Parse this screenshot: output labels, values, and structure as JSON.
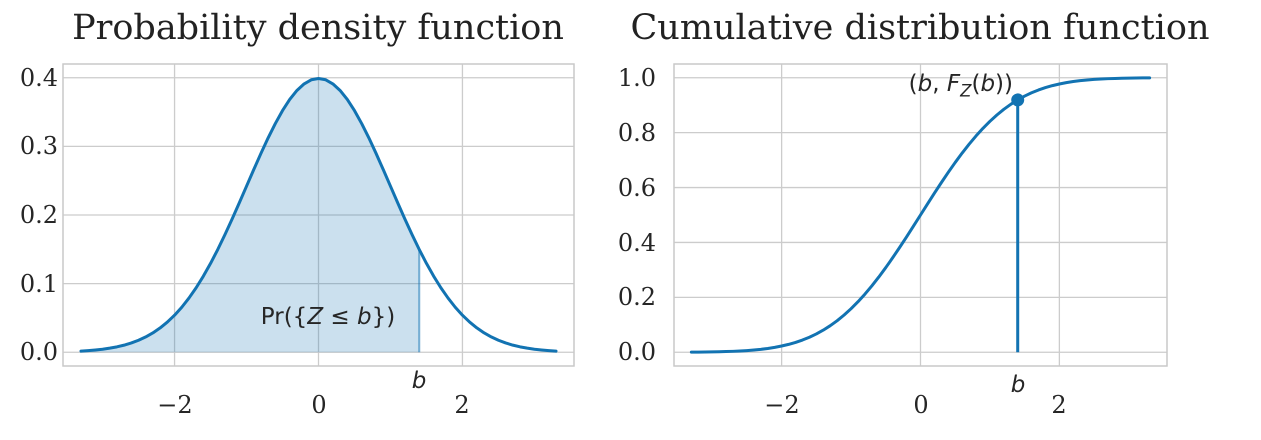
{
  "figure": {
    "background": "#ffffff",
    "accent_blue": "#1273b2",
    "fill_blue": "rgba(18,114,178,0.22)",
    "fill_edge_blue": "rgba(18,114,178,0.55)",
    "grid_color": "#cccccc",
    "frame_color": "#c9c9c9",
    "text_color": "#262626"
  },
  "chart_data": [
    {
      "id": "pdf",
      "type": "line",
      "title": "Probability density function",
      "xlim": [
        -3.55,
        3.55
      ],
      "ylim": [
        -0.02,
        0.42
      ],
      "xticks": [
        -2,
        0,
        2
      ],
      "xtick_labels": [
        "−2",
        "0",
        "2"
      ],
      "yticks": [
        0.0,
        0.1,
        0.2,
        0.3,
        0.4
      ],
      "ytick_labels": [
        "0.0",
        "0.1",
        "0.2",
        "0.3",
        "0.4"
      ],
      "grid": true,
      "x": [
        -3.3,
        -3.2,
        -3.1,
        -3.0,
        -2.9,
        -2.8,
        -2.7,
        -2.6,
        -2.5,
        -2.4,
        -2.3,
        -2.2,
        -2.1,
        -2.0,
        -1.9,
        -1.8,
        -1.7,
        -1.6,
        -1.5,
        -1.4,
        -1.3,
        -1.2,
        -1.1,
        -1.0,
        -0.9,
        -0.8,
        -0.7,
        -0.6,
        -0.5,
        -0.4,
        -0.3,
        -0.2,
        -0.1,
        0.0,
        0.1,
        0.2,
        0.3,
        0.4,
        0.5,
        0.6,
        0.7,
        0.8,
        0.9,
        1.0,
        1.1,
        1.2,
        1.3,
        1.4,
        1.5,
        1.6,
        1.7,
        1.8,
        1.9,
        2.0,
        2.1,
        2.2,
        2.3,
        2.4,
        2.5,
        2.6,
        2.7,
        2.8,
        2.9,
        3.0,
        3.1,
        3.2,
        3.3
      ],
      "y": [
        0.0017,
        0.0024,
        0.0033,
        0.0044,
        0.006,
        0.0079,
        0.0104,
        0.0136,
        0.0175,
        0.0224,
        0.0283,
        0.0355,
        0.044,
        0.054,
        0.0656,
        0.079,
        0.094,
        0.1109,
        0.1295,
        0.1497,
        0.1714,
        0.1942,
        0.2179,
        0.242,
        0.2661,
        0.2897,
        0.3123,
        0.3332,
        0.3521,
        0.3683,
        0.3814,
        0.391,
        0.397,
        0.3989,
        0.397,
        0.391,
        0.3814,
        0.3683,
        0.3521,
        0.3332,
        0.3123,
        0.2897,
        0.2661,
        0.242,
        0.2179,
        0.1942,
        0.1714,
        0.1497,
        0.1295,
        0.1109,
        0.094,
        0.079,
        0.0656,
        0.054,
        0.044,
        0.0355,
        0.0283,
        0.0224,
        0.0175,
        0.0136,
        0.0104,
        0.0079,
        0.006,
        0.0044,
        0.0033,
        0.0024,
        0.0017
      ],
      "fill_to_x": 1.4,
      "marker_x_label": "b",
      "annotation_parts": {
        "pr": "Pr({",
        "Z": "Z",
        "leq": " ≤ ",
        "b": "b",
        "close": "})"
      }
    },
    {
      "id": "cdf",
      "type": "line",
      "title": "Cumulative distribution function",
      "xlim": [
        -3.55,
        3.55
      ],
      "ylim": [
        -0.05,
        1.05
      ],
      "xticks": [
        -2,
        0,
        2
      ],
      "xtick_labels": [
        "−2",
        "0",
        "2"
      ],
      "yticks": [
        0.0,
        0.2,
        0.4,
        0.6,
        0.8,
        1.0
      ],
      "ytick_labels": [
        "0.0",
        "0.2",
        "0.4",
        "0.6",
        "0.8",
        "1.0"
      ],
      "grid": true,
      "x": [
        -3.3,
        -3.2,
        -3.1,
        -3.0,
        -2.9,
        -2.8,
        -2.7,
        -2.6,
        -2.5,
        -2.4,
        -2.3,
        -2.2,
        -2.1,
        -2.0,
        -1.9,
        -1.8,
        -1.7,
        -1.6,
        -1.5,
        -1.4,
        -1.3,
        -1.2,
        -1.1,
        -1.0,
        -0.9,
        -0.8,
        -0.7,
        -0.6,
        -0.5,
        -0.4,
        -0.3,
        -0.2,
        -0.1,
        0.0,
        0.1,
        0.2,
        0.3,
        0.4,
        0.5,
        0.6,
        0.7,
        0.8,
        0.9,
        1.0,
        1.1,
        1.2,
        1.3,
        1.4,
        1.5,
        1.6,
        1.7,
        1.8,
        1.9,
        2.0,
        2.1,
        2.2,
        2.3,
        2.4,
        2.5,
        2.6,
        2.7,
        2.8,
        2.9,
        3.0,
        3.1,
        3.2,
        3.3
      ],
      "y": [
        0.0005,
        0.0007,
        0.001,
        0.0013,
        0.0019,
        0.0026,
        0.0035,
        0.0047,
        0.0062,
        0.0082,
        0.0107,
        0.0139,
        0.0179,
        0.0228,
        0.0287,
        0.0359,
        0.0446,
        0.0548,
        0.0668,
        0.0808,
        0.0968,
        0.1151,
        0.1357,
        0.1587,
        0.1841,
        0.2119,
        0.242,
        0.2743,
        0.3085,
        0.3446,
        0.3821,
        0.4207,
        0.4602,
        0.5,
        0.5398,
        0.5793,
        0.6179,
        0.6554,
        0.6915,
        0.7257,
        0.758,
        0.7881,
        0.8159,
        0.8413,
        0.8643,
        0.8849,
        0.9032,
        0.9192,
        0.9332,
        0.9452,
        0.9554,
        0.9641,
        0.9713,
        0.9772,
        0.9821,
        0.9861,
        0.9893,
        0.9918,
        0.9938,
        0.9953,
        0.9965,
        0.9974,
        0.9981,
        0.9987,
        0.999,
        0.9993,
        0.9995
      ],
      "point": {
        "x": 1.4,
        "y": 0.9192
      },
      "marker_x_label": "b",
      "annotation_parts": {
        "open": "(",
        "b1": "b",
        "comma": ", ",
        "F": "F",
        "sub": "Z",
        "popen": "(",
        "b2": "b",
        "close": "))"
      }
    }
  ]
}
